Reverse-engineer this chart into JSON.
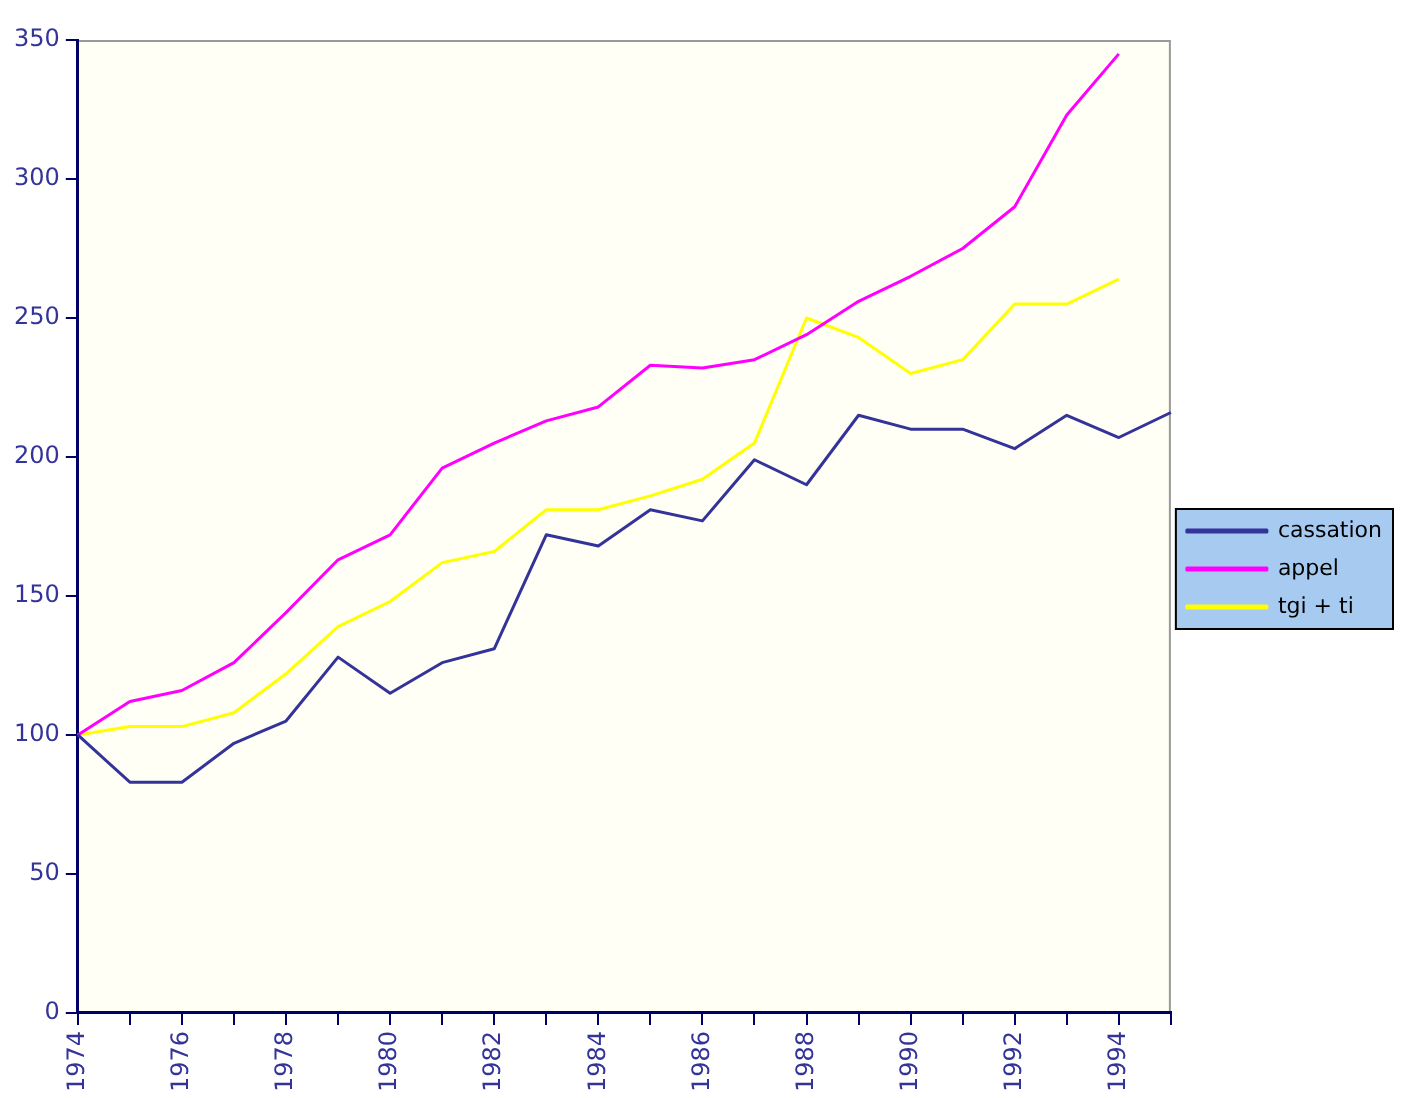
{
  "chart_data": {
    "type": "line",
    "categories": [
      "1974",
      null,
      "1976",
      null,
      "1978",
      null,
      "1980",
      null,
      "1982",
      null,
      "1984",
      null,
      "1986",
      null,
      "1988",
      null,
      "1990",
      null,
      "1992",
      null,
      "1994",
      null
    ],
    "series": [
      {
        "name": "cassation",
        "color": "#333399",
        "values": [
          100,
          83,
          83,
          97,
          105,
          128,
          115,
          126,
          131,
          172,
          168,
          181,
          177,
          199,
          190,
          215,
          210,
          210,
          203,
          215,
          207,
          216
        ]
      },
      {
        "name": "appel",
        "color": "#ff00ff",
        "values": [
          100,
          112,
          116,
          126,
          144,
          163,
          172,
          196,
          205,
          213,
          218,
          233,
          232,
          235,
          244,
          256,
          265,
          275,
          290,
          323,
          345,
          null
        ]
      },
      {
        "name": "tgi + ti",
        "color": "#ffff00",
        "values": [
          100,
          103,
          103,
          108,
          122,
          139,
          148,
          162,
          166,
          181,
          181,
          186,
          192,
          205,
          250,
          243,
          230,
          235,
          255,
          255,
          264,
          null
        ]
      }
    ],
    "ylim": [
      0,
      350
    ],
    "yticks": [
      0,
      50,
      100,
      150,
      200,
      250,
      300,
      350
    ],
    "grid": false,
    "legend": "right",
    "marker": "none",
    "line_style": "solid"
  }
}
